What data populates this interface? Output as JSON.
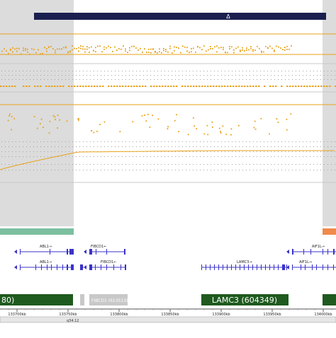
{
  "title_bar": {
    "strand_marker": "Δ"
  },
  "tracks": [
    {
      "name": "scatter-track-top",
      "kind": "scatter",
      "color": "#e8a21a"
    },
    {
      "name": "dotted-grid-track",
      "kind": "grid"
    },
    {
      "name": "scatter-track-middle",
      "kind": "scatter",
      "color": "#e8a21a"
    },
    {
      "name": "cumulative-line-track",
      "kind": "line",
      "color": "#e8a21a"
    }
  ],
  "colors": {
    "shaded_region": "#dcdcdc",
    "data_orange": "#e8a21a",
    "accent_navy": "#1b1f4f",
    "segment_green": "#7bbf9f",
    "segment_orange": "#f08a4b",
    "gene_blue": "#3a33c9",
    "omim_green": "#1f5a1f",
    "omim_grey": "#c8c8c8"
  },
  "genes": {
    "row1": [
      {
        "label": "ABL1→",
        "icon": "arrow-right-icon"
      },
      {
        "label": "FIBCD1←",
        "icon": "arrow-left-icon"
      },
      {
        "label": "AIF1L→",
        "icon": "arrow-right-icon"
      }
    ],
    "row2": [
      {
        "label": "ABL1→"
      },
      {
        "label": "FIBCD1←"
      },
      {
        "label": "LAMC3→"
      },
      {
        "label": "AIF1L→"
      }
    ]
  },
  "omim": [
    {
      "label": "80)"
    },
    {
      "label": "FIBCD1 (613513)"
    },
    {
      "label": "LAMC3 (604349)"
    }
  ],
  "ruler": {
    "ticks": [
      "133700kb",
      "133750kb",
      "133800kb",
      "133850kb",
      "133900kb",
      "133950kb",
      "134000kb"
    ],
    "band": "q34.12"
  }
}
